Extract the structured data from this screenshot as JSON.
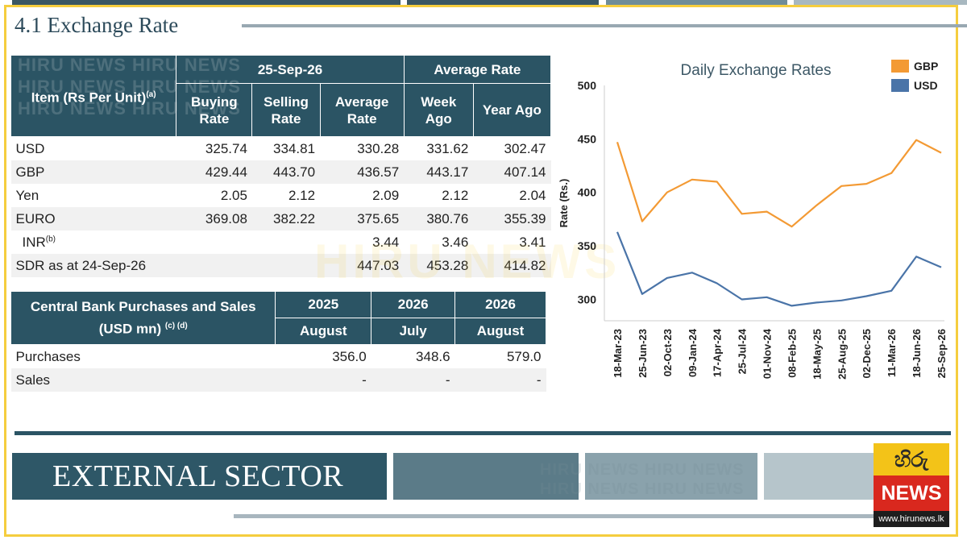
{
  "section_title": "4.1 Exchange Rate",
  "rates_table": {
    "header_item": "Item (Rs Per Unit)",
    "header_item_note": "(a)",
    "header_date": "25-Sep-26",
    "header_avg": "Average Rate",
    "col_buying": "Buying Rate",
    "col_selling": "Selling Rate",
    "col_average": "Average Rate",
    "col_week": "Week Ago",
    "col_year": "Year Ago",
    "rows": [
      {
        "item": "USD",
        "note": "",
        "buying": "325.74",
        "selling": "334.81",
        "average": "330.28",
        "week": "331.62",
        "year": "302.47"
      },
      {
        "item": "GBP",
        "note": "",
        "buying": "429.44",
        "selling": "443.70",
        "average": "436.57",
        "week": "443.17",
        "year": "407.14"
      },
      {
        "item": "Yen",
        "note": "",
        "buying": "2.05",
        "selling": "2.12",
        "average": "2.09",
        "week": "2.12",
        "year": "2.04"
      },
      {
        "item": "EURO",
        "note": "",
        "buying": "369.08",
        "selling": "382.22",
        "average": "375.65",
        "week": "380.76",
        "year": "355.39"
      },
      {
        "item": "INR",
        "note": "(b)",
        "buying": "",
        "selling": "",
        "average": "3.44",
        "week": "3.46",
        "year": "3.41"
      },
      {
        "item": "SDR as at 24-Sep-26",
        "note": "",
        "buying": "",
        "selling": "",
        "average": "447.03",
        "week": "453.28",
        "year": "414.82"
      }
    ]
  },
  "cb_table": {
    "header_title": "Central Bank Purchases and Sales",
    "header_unit": "(USD mn)",
    "header_notes": "(c) (d)",
    "cols": [
      {
        "year": "2025",
        "month": "August"
      },
      {
        "year": "2026",
        "month": "July"
      },
      {
        "year": "2026",
        "month": "August"
      }
    ],
    "rows": [
      {
        "label": "Purchases",
        "values": [
          "356.0",
          "348.6",
          "579.0"
        ]
      },
      {
        "label": "Sales",
        "values": [
          "-",
          "-",
          "-"
        ]
      }
    ]
  },
  "chart_data": {
    "type": "line",
    "title": "Daily Exchange Rates",
    "ylabel": "Rate (Rs.)",
    "xlabel": "",
    "ylim": [
      280,
      500
    ],
    "yticks": [
      300,
      350,
      400,
      450,
      500
    ],
    "x": [
      "18-Mar-23",
      "25-Jun-23",
      "02-Oct-23",
      "09-Jan-24",
      "17-Apr-24",
      "25-Jul-24",
      "01-Nov-24",
      "08-Feb-25",
      "18-May-25",
      "25-Aug-25",
      "02-Dec-25",
      "11-Mar-26",
      "18-Jun-26",
      "25-Sep-26"
    ],
    "legend_position": "top-right",
    "grid": false,
    "series": [
      {
        "name": "GBP",
        "color": "#f39a34",
        "values": [
          447,
          373,
          400,
          412,
          410,
          380,
          382,
          368,
          388,
          406,
          408,
          418,
          449,
          437
        ]
      },
      {
        "name": "USD",
        "color": "#4a74a8",
        "values": [
          363,
          305,
          320,
          325,
          315,
          300,
          302,
          294,
          297,
          299,
          303,
          308,
          340,
          330
        ]
      }
    ]
  },
  "external_sector": "EXTERNAL SECTOR",
  "watermark_text": "HIRU NEWS",
  "logo": {
    "top": "හිරු",
    "middle": "NEWS",
    "url": "www.hirunews.lk",
    "color_top": "#f3c318",
    "color_mid": "#d9281e"
  },
  "colors": {
    "header_bg": "#2b5464",
    "frame": "#f5cd3e"
  }
}
